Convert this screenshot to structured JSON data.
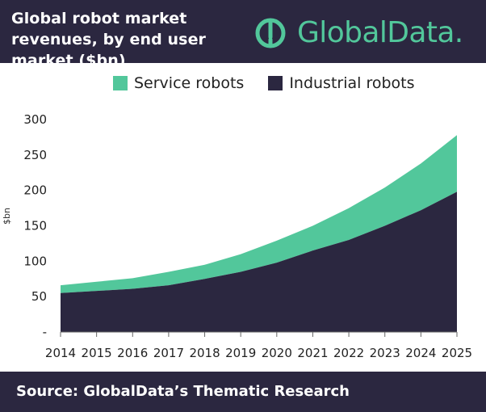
{
  "header": {
    "title": "Global robot market revenues, by end user market ($bn)",
    "brand_text": "GlobalData."
  },
  "footer": {
    "source_text": "Source:  GlobalData’s Thematic Research"
  },
  "colors": {
    "brand_dark": "#2b2740",
    "service_robots": "#52c79b",
    "industrial_robots": "#2b2740"
  },
  "icons": {
    "brand_logo": "globaldata-logo-icon"
  },
  "chart_data": {
    "type": "area",
    "x": [
      2014,
      2015,
      2016,
      2017,
      2018,
      2019,
      2020,
      2021,
      2022,
      2023,
      2024,
      2025
    ],
    "series": [
      {
        "name": "Industrial robots",
        "values": [
          55,
          58,
          61,
          66,
          75,
          85,
          98,
          115,
          130,
          150,
          172,
          198
        ]
      },
      {
        "name": "Service robots",
        "values": [
          11,
          13,
          15,
          19,
          20,
          25,
          31,
          35,
          45,
          54,
          66,
          80
        ]
      }
    ],
    "stacked": true,
    "xlabel": "",
    "ylabel": "$bn",
    "ylim": [
      0,
      300
    ],
    "yticks": [
      "-",
      "50",
      "100",
      "150",
      "200",
      "250",
      "300"
    ],
    "legend_position": "top-center",
    "grid": false
  }
}
